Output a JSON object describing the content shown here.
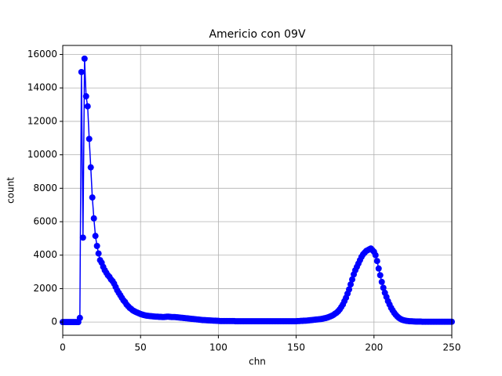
{
  "chart_data": {
    "type": "line",
    "title": "Americio con 09V",
    "xlabel": "chn",
    "ylabel": "count",
    "x": [
      0,
      1,
      2,
      3,
      4,
      5,
      6,
      7,
      8,
      9,
      10,
      11,
      12,
      13,
      14,
      15,
      16,
      17,
      18,
      19,
      20,
      21,
      22,
      23,
      24,
      25,
      26,
      27,
      28,
      29,
      30,
      31,
      32,
      33,
      34,
      35,
      36,
      37,
      38,
      39,
      40,
      41,
      42,
      43,
      44,
      45,
      46,
      47,
      48,
      49,
      50,
      51,
      52,
      53,
      54,
      55,
      56,
      57,
      58,
      59,
      60,
      61,
      62,
      63,
      64,
      65,
      66,
      67,
      68,
      69,
      70,
      71,
      72,
      73,
      74,
      75,
      76,
      77,
      78,
      79,
      80,
      81,
      82,
      83,
      84,
      85,
      86,
      87,
      88,
      89,
      90,
      91,
      92,
      93,
      94,
      95,
      96,
      97,
      98,
      99,
      100,
      101,
      102,
      103,
      104,
      105,
      106,
      107,
      108,
      109,
      110,
      111,
      112,
      113,
      114,
      115,
      116,
      117,
      118,
      119,
      120,
      121,
      122,
      123,
      124,
      125,
      126,
      127,
      128,
      129,
      130,
      131,
      132,
      133,
      134,
      135,
      136,
      137,
      138,
      139,
      140,
      141,
      142,
      143,
      144,
      145,
      146,
      147,
      148,
      149,
      150,
      151,
      152,
      153,
      154,
      155,
      156,
      157,
      158,
      159,
      160,
      161,
      162,
      163,
      164,
      165,
      166,
      167,
      168,
      169,
      170,
      171,
      172,
      173,
      174,
      175,
      176,
      177,
      178,
      179,
      180,
      181,
      182,
      183,
      184,
      185,
      186,
      187,
      188,
      189,
      190,
      191,
      192,
      193,
      194,
      195,
      196,
      197,
      198,
      199,
      200,
      201,
      202,
      203,
      204,
      205,
      206,
      207,
      208,
      209,
      210,
      211,
      212,
      213,
      214,
      215,
      216,
      217,
      218,
      219,
      220,
      221,
      222,
      223,
      224,
      225,
      226,
      227,
      228,
      229,
      230,
      231,
      232,
      233,
      234,
      235,
      236,
      237,
      238,
      239,
      240,
      241,
      242,
      243,
      244,
      245,
      246,
      247,
      248,
      249,
      250
    ],
    "series": [
      {
        "color": "#0000ff",
        "values": [
          0,
          0,
          0,
          0,
          0,
          0,
          0,
          0,
          0,
          0,
          0,
          250,
          14950,
          5050,
          15750,
          13500,
          12900,
          10950,
          9250,
          7450,
          6200,
          5150,
          4550,
          4100,
          3700,
          3550,
          3300,
          3100,
          2950,
          2800,
          2700,
          2550,
          2450,
          2300,
          2100,
          1900,
          1750,
          1600,
          1450,
          1300,
          1200,
          1050,
          950,
          850,
          780,
          700,
          650,
          600,
          560,
          520,
          480,
          450,
          420,
          400,
          380,
          370,
          360,
          350,
          340,
          330,
          320,
          320,
          310,
          310,
          300,
          300,
          310,
          320,
          320,
          310,
          300,
          300,
          300,
          290,
          280,
          270,
          260,
          250,
          240,
          230,
          220,
          210,
          200,
          190,
          180,
          170,
          160,
          150,
          140,
          130,
          120,
          115,
          110,
          105,
          100,
          95,
          90,
          85,
          80,
          75,
          70,
          60,
          60,
          60,
          60,
          60,
          60,
          60,
          60,
          60,
          60,
          50,
          50,
          50,
          50,
          50,
          50,
          50,
          50,
          50,
          50,
          50,
          50,
          50,
          50,
          50,
          50,
          50,
          50,
          50,
          50,
          50,
          50,
          50,
          50,
          50,
          50,
          50,
          50,
          50,
          50,
          50,
          50,
          50,
          50,
          50,
          50,
          50,
          50,
          50,
          50,
          60,
          60,
          70,
          70,
          80,
          80,
          90,
          100,
          110,
          120,
          130,
          140,
          150,
          160,
          170,
          180,
          200,
          220,
          240,
          270,
          300,
          340,
          380,
          430,
          500,
          560,
          650,
          760,
          900,
          1050,
          1250,
          1450,
          1700,
          1950,
          2250,
          2550,
          2850,
          3100,
          3300,
          3500,
          3700,
          3900,
          4050,
          4150,
          4250,
          4300,
          4350,
          4400,
          4300,
          4200,
          4000,
          3650,
          3200,
          2800,
          2400,
          2050,
          1750,
          1500,
          1250,
          1050,
          850,
          700,
          550,
          430,
          330,
          250,
          190,
          140,
          110,
          90,
          70,
          60,
          50,
          45,
          40,
          35,
          30,
          30,
          30,
          30,
          20,
          20,
          20,
          20,
          20,
          20,
          20,
          20,
          20,
          20,
          20,
          20,
          20,
          20,
          20,
          20,
          20,
          20,
          20,
          20
        ]
      }
    ],
    "xlim": [
      0,
      250
    ],
    "xticks": [
      0,
      50,
      100,
      150,
      200,
      250
    ],
    "ylim": [
      -790,
      16540
    ],
    "yticks": [
      0,
      2000,
      4000,
      6000,
      8000,
      10000,
      12000,
      14000,
      16000
    ],
    "grid": true
  }
}
